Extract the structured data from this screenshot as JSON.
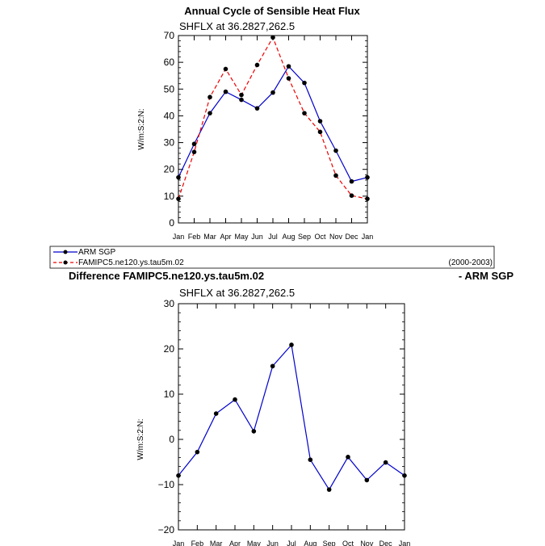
{
  "chart_data": [
    {
      "type": "line",
      "title": "Annual Cycle of Sensible Heat Flux",
      "subtitle": "SHFLX  at  36.2827,262.5",
      "ylabel": "W/m:S:2:N:",
      "xlabel": "",
      "categories": [
        "Jan",
        "Feb",
        "Mar",
        "Apr",
        "May",
        "Jun",
        "Jul",
        "Aug",
        "Sep",
        "Oct",
        "Nov",
        "Dec",
        "Jan"
      ],
      "ylim": [
        0,
        70
      ],
      "yticks": [
        0,
        10,
        20,
        30,
        40,
        50,
        60,
        70
      ],
      "series": [
        {
          "name": "ARM SGP",
          "color": "#0000cc",
          "dash": "solid",
          "values": [
            17,
            29.5,
            41,
            49,
            46,
            42.8,
            48.7,
            58.5,
            52.3,
            38,
            27,
            15.5,
            17
          ]
        },
        {
          "name": "FAMIPC5.ne120.ys.tau5m.02",
          "color": "#ee0000",
          "dash": "dashed",
          "values": [
            9,
            26.5,
            47,
            57.5,
            47.8,
            59,
            69.3,
            54,
            41,
            34,
            17.7,
            10.2,
            9
          ]
        }
      ],
      "legend": {
        "items": [
          "ARM SGP",
          "FAMIPC5.ne120.ys.tau5m.02"
        ],
        "period": "(2000-2003)",
        "position": "below"
      }
    },
    {
      "type": "line",
      "title_left": "Difference FAMIPC5.ne120.ys.tau5m.02",
      "title_right": "- ARM SGP",
      "subtitle": "SHFLX  at  36.2827,262.5",
      "ylabel": "W/m:S:2:N:",
      "xlabel": "",
      "categories": [
        "Jan",
        "Feb",
        "Mar",
        "Apr",
        "May",
        "Jun",
        "Jul",
        "Aug",
        "Sep",
        "Oct",
        "Nov",
        "Dec",
        "Jan"
      ],
      "ylim": [
        -20,
        30
      ],
      "yticks": [
        -20,
        -10,
        0,
        10,
        20,
        30
      ],
      "series": [
        {
          "name": "difference",
          "color": "#0000cc",
          "dash": "solid",
          "values": [
            -8,
            -2.8,
            5.7,
            8.8,
            1.8,
            16.2,
            20.9,
            -4.5,
            -11.1,
            -3.9,
            -9,
            -5.1,
            -8
          ]
        }
      ]
    }
  ]
}
